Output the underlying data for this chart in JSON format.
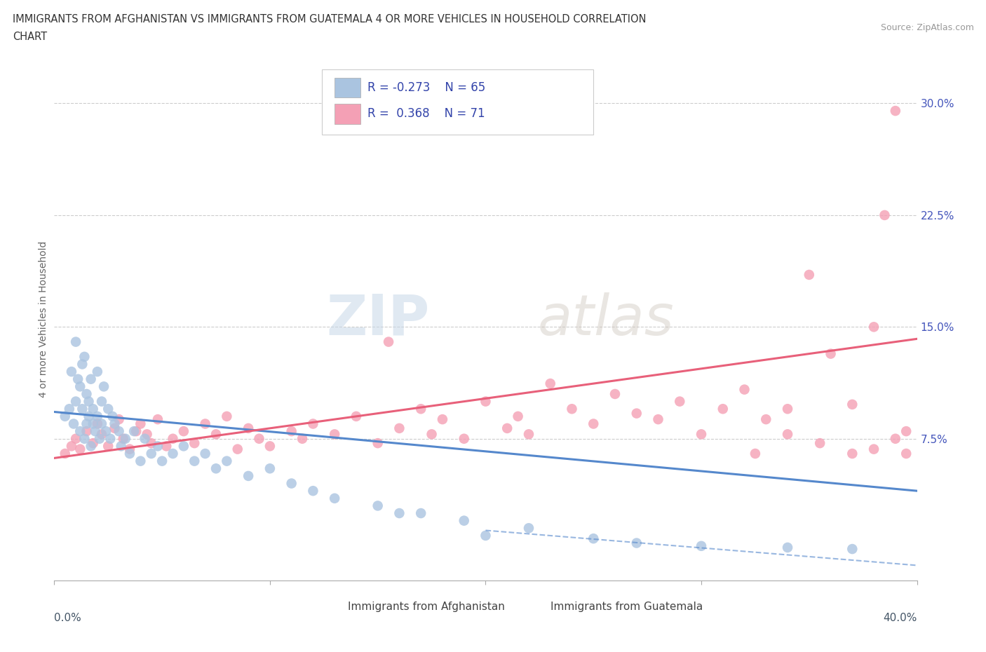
{
  "title_line1": "IMMIGRANTS FROM AFGHANISTAN VS IMMIGRANTS FROM GUATEMALA 4 OR MORE VEHICLES IN HOUSEHOLD CORRELATION",
  "title_line2": "CHART",
  "source": "Source: ZipAtlas.com",
  "ylabel": "4 or more Vehicles in Household",
  "ytick_labels": [
    "7.5%",
    "15.0%",
    "22.5%",
    "30.0%"
  ],
  "ytick_values": [
    0.075,
    0.15,
    0.225,
    0.3
  ],
  "color_afghanistan": "#aac4e0",
  "color_guatemala": "#f4a0b5",
  "color_afghanistan_line": "#5588cc",
  "color_guatemala_line": "#e8607a",
  "legend_label_afghanistan": "Immigrants from Afghanistan",
  "legend_label_guatemala": "Immigrants from Guatemala",
  "watermark_zip": "ZIP",
  "watermark_atlas": "atlas",
  "xmin": 0.0,
  "xmax": 0.4,
  "ymin": -0.02,
  "ymax": 0.33,
  "afghanistan_scatter_x": [
    0.005,
    0.007,
    0.008,
    0.009,
    0.01,
    0.01,
    0.011,
    0.012,
    0.012,
    0.013,
    0.013,
    0.014,
    0.014,
    0.015,
    0.015,
    0.016,
    0.016,
    0.017,
    0.017,
    0.018,
    0.018,
    0.019,
    0.02,
    0.02,
    0.021,
    0.022,
    0.022,
    0.023,
    0.024,
    0.025,
    0.026,
    0.027,
    0.028,
    0.03,
    0.031,
    0.033,
    0.035,
    0.037,
    0.04,
    0.042,
    0.045,
    0.048,
    0.05,
    0.055,
    0.06,
    0.065,
    0.07,
    0.075,
    0.08,
    0.09,
    0.1,
    0.11,
    0.12,
    0.13,
    0.15,
    0.16,
    0.17,
    0.19,
    0.2,
    0.22,
    0.25,
    0.27,
    0.3,
    0.34,
    0.37
  ],
  "afghanistan_scatter_y": [
    0.09,
    0.095,
    0.12,
    0.085,
    0.14,
    0.1,
    0.115,
    0.08,
    0.11,
    0.095,
    0.125,
    0.075,
    0.13,
    0.085,
    0.105,
    0.09,
    0.1,
    0.115,
    0.07,
    0.085,
    0.095,
    0.08,
    0.12,
    0.09,
    0.075,
    0.1,
    0.085,
    0.11,
    0.08,
    0.095,
    0.075,
    0.09,
    0.085,
    0.08,
    0.07,
    0.075,
    0.065,
    0.08,
    0.06,
    0.075,
    0.065,
    0.07,
    0.06,
    0.065,
    0.07,
    0.06,
    0.065,
    0.055,
    0.06,
    0.05,
    0.055,
    0.045,
    0.04,
    0.035,
    0.03,
    0.025,
    0.025,
    0.02,
    0.01,
    0.015,
    0.008,
    0.005,
    0.003,
    0.002,
    0.001
  ],
  "guatemala_scatter_x": [
    0.005,
    0.008,
    0.01,
    0.012,
    0.015,
    0.018,
    0.02,
    0.022,
    0.025,
    0.028,
    0.03,
    0.032,
    0.035,
    0.038,
    0.04,
    0.043,
    0.045,
    0.048,
    0.052,
    0.055,
    0.06,
    0.065,
    0.07,
    0.075,
    0.08,
    0.085,
    0.09,
    0.095,
    0.1,
    0.11,
    0.115,
    0.12,
    0.13,
    0.14,
    0.15,
    0.155,
    0.16,
    0.17,
    0.175,
    0.18,
    0.19,
    0.2,
    0.21,
    0.215,
    0.22,
    0.23,
    0.24,
    0.25,
    0.26,
    0.27,
    0.28,
    0.29,
    0.3,
    0.31,
    0.32,
    0.33,
    0.34,
    0.35,
    0.36,
    0.37,
    0.38,
    0.385,
    0.39,
    0.395,
    0.395,
    0.39,
    0.38,
    0.37,
    0.355,
    0.34,
    0.325
  ],
  "guatemala_scatter_y": [
    0.065,
    0.07,
    0.075,
    0.068,
    0.08,
    0.072,
    0.085,
    0.078,
    0.07,
    0.082,
    0.088,
    0.075,
    0.068,
    0.08,
    0.085,
    0.078,
    0.072,
    0.088,
    0.07,
    0.075,
    0.08,
    0.072,
    0.085,
    0.078,
    0.09,
    0.068,
    0.082,
    0.075,
    0.07,
    0.08,
    0.075,
    0.085,
    0.078,
    0.09,
    0.072,
    0.14,
    0.082,
    0.095,
    0.078,
    0.088,
    0.075,
    0.1,
    0.082,
    0.09,
    0.078,
    0.112,
    0.095,
    0.085,
    0.105,
    0.092,
    0.088,
    0.1,
    0.078,
    0.095,
    0.108,
    0.088,
    0.095,
    0.185,
    0.132,
    0.098,
    0.15,
    0.225,
    0.295,
    0.065,
    0.08,
    0.075,
    0.068,
    0.065,
    0.072,
    0.078,
    0.065
  ],
  "af_trend_x": [
    0.0,
    0.4
  ],
  "af_trend_y": [
    0.093,
    0.04
  ],
  "gt_trend_x": [
    0.0,
    0.4
  ],
  "gt_trend_y": [
    0.062,
    0.142
  ]
}
